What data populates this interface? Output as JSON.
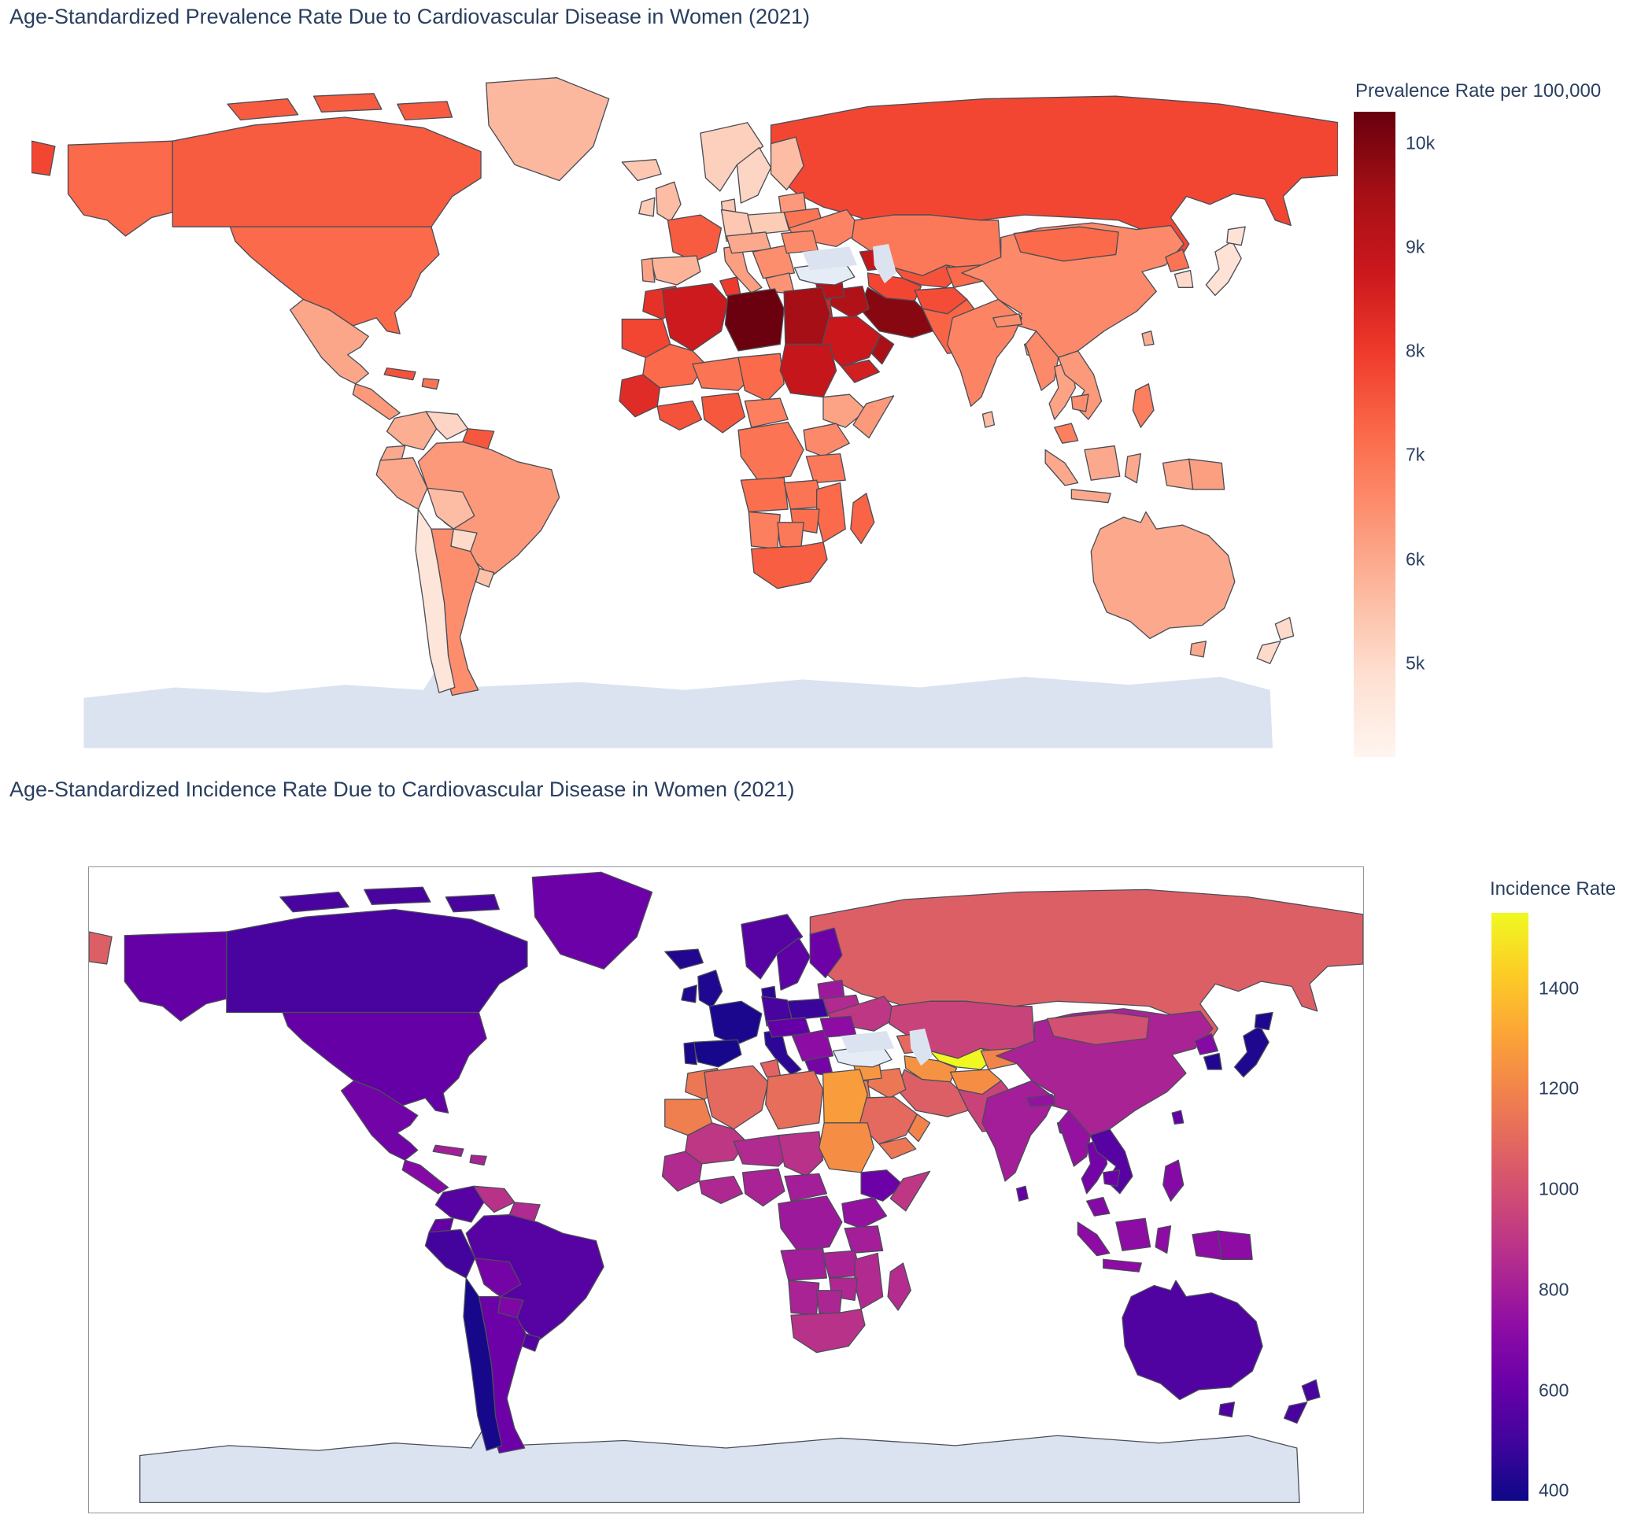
{
  "style": {
    "background": "#ffffff",
    "title_color": "#2a3f5f",
    "land_border_color": "#4a4e57",
    "frame_color": "#8f959c",
    "no_data_color": "#e6ecf5",
    "water_color": "#dbe3f1",
    "antarctica_color": "#dbe3f1"
  },
  "map1": {
    "title": "Age-Standardized Prevalence Rate Due to Cardiovascular Disease in Women (2021)",
    "colorbar": {
      "title": "Prevalence Rate per 100,000",
      "tick_labels": [
        "10k",
        "9k",
        "8k",
        "7k",
        "6k",
        "5k"
      ],
      "tick_values": [
        10000,
        9000,
        8000,
        7000,
        6000,
        5000
      ]
    }
  },
  "map2": {
    "title": "Age-Standardized Incidence Rate Due to Cardiovascular Disease in Women (2021)",
    "colorbar": {
      "title": "Incidence Rate",
      "tick_labels": [
        "1400",
        "1200",
        "1000",
        "800",
        "600",
        "400"
      ],
      "tick_values": [
        1400,
        1200,
        1000,
        800,
        600,
        400
      ]
    }
  },
  "chart_data": [
    {
      "type": "choropleth",
      "title": "Age-Standardized Prevalence Rate Due to Cardiovascular Disease in Women (2021)",
      "colorbar_title": "Prevalence Rate per 100,000",
      "zmin": 4100,
      "zmax": 10300,
      "colorscale_name": "Reds",
      "colorscale": [
        "#fff5f0",
        "#fee0d2",
        "#fcbba1",
        "#fc9272",
        "#fb6a4a",
        "#ef3b2c",
        "#cb181d",
        "#a50f15",
        "#67000d"
      ],
      "legend_position": "right",
      "values": {
        "united-states": 7200,
        "canada": 7450,
        "greenland": 5700,
        "mexico": 6050,
        "central-america": 6300,
        "cuba": 7600,
        "hispaniola": 7000,
        "colombia": 5900,
        "venezuela": 5100,
        "guyana-suriname": 7500,
        "ecuador": 6000,
        "peru": 6000,
        "brazil": 6300,
        "bolivia": 5600,
        "paraguay": 5000,
        "chile": 4700,
        "argentina": 6500,
        "uruguay": 5500,
        "iceland": 5400,
        "united-kingdom": 5600,
        "ireland": 5300,
        "norway": 5200,
        "sweden": 5100,
        "finland": 5600,
        "denmark": 5400,
        "baltics": 6300,
        "poland": 5300,
        "germany": 5400,
        "france": 7450,
        "spain": 5800,
        "portugal": 6100,
        "italy": 6200,
        "central-europe": 6000,
        "balkans": 6500,
        "greece": 6400,
        "romania": 6600,
        "ukraine": 6700,
        "belarus": 7000,
        "russia": 7800,
        "turkey": null,
        "caucasus": 8900,
        "kazakhstan": 6900,
        "uzbekistan": 7600,
        "turkmenistan": 7800,
        "kyrgyzstan-tajikistan": 7200,
        "afghanistan": 7700,
        "pakistan": 7300,
        "iran": 9900,
        "iraq": 9300,
        "syria": 9200,
        "jordan-israel": 8400,
        "saudi-arabia": 8800,
        "yemen": 8600,
        "oman": 9400,
        "morocco": 8200,
        "western-sahara-mauritania": 7800,
        "algeria": 8700,
        "tunisia": 8000,
        "libya": 10250,
        "egypt": 9500,
        "mali": 7200,
        "niger": 7000,
        "chad": 7200,
        "sudan": 8900,
        "ethiopia": 6100,
        "somalia": 6300,
        "senegal-guinea": 8300,
        "ivory-ghana": 7600,
        "nigeria": 7500,
        "cameroon-car": 6800,
        "dr-congo": 7000,
        "uganda-kenya": 6600,
        "tanzania": 6900,
        "angola": 7100,
        "zambia": 7000,
        "mozambique": 7200,
        "zimbabwe": 7100,
        "namibia": 6800,
        "botswana": 6900,
        "south-africa": 7400,
        "madagascar": 7300,
        "india": 6700,
        "nepal": 6500,
        "bangladesh": 6100,
        "sri-lanka": 5600,
        "china": 6600,
        "mongolia": 7200,
        "north-korea": 7000,
        "south-korea": 5000,
        "japan": 4800,
        "taiwan": 5900,
        "myanmar": 6600,
        "thailand": 6100,
        "laos-vietnam": 6300,
        "cambodia": 6500,
        "malaysia": 6800,
        "indonesia": 6000,
        "philippines": 6800,
        "papua-new-guinea": 6200,
        "australia": 6000,
        "new-zealand": 5000
      }
    },
    {
      "type": "choropleth",
      "title": "Age-Standardized Incidence Rate Due to Cardiovascular Disease in Women (2021)",
      "colorbar_title": "Incidence Rate",
      "zmin": 380,
      "zmax": 1550,
      "colorscale_name": "Plasma",
      "colorscale": [
        "#0d0887",
        "#41049d",
        "#6a00a8",
        "#8f0da4",
        "#b12a90",
        "#cc4778",
        "#e16462",
        "#f2844b",
        "#fca636",
        "#fcce25",
        "#f0f921"
      ],
      "legend_position": "right",
      "values": {
        "united-states": 600,
        "canada": 520,
        "greenland": 620,
        "mexico": 640,
        "central-america": 700,
        "cuba": 800,
        "hispaniola": 820,
        "colombia": 560,
        "venezuela": 880,
        "guyana-suriname": 850,
        "ecuador": 600,
        "peru": 500,
        "brazil": 560,
        "bolivia": 650,
        "paraguay": 680,
        "chile": 400,
        "argentina": 620,
        "uruguay": 550,
        "iceland": 430,
        "united-kingdom": 420,
        "ireland": 430,
        "norway": 560,
        "sweden": 580,
        "finland": 620,
        "denmark": 450,
        "baltics": 780,
        "poland": 480,
        "germany": 520,
        "france": 410,
        "spain": 400,
        "portugal": 410,
        "italy": 450,
        "central-europe": 600,
        "balkans": 720,
        "greece": 650,
        "romania": 720,
        "ukraine": 900,
        "belarus": 850,
        "russia": 1060,
        "turkey": null,
        "caucasus": 1100,
        "kazakhstan": 950,
        "uzbekistan": 1545,
        "turkmenistan": 1250,
        "kyrgyzstan-tajikistan": 1200,
        "afghanistan": 1230,
        "pakistan": 950,
        "iran": 1060,
        "iraq": 1150,
        "syria": 1260,
        "jordan-israel": 1150,
        "saudi-arabia": 1100,
        "yemen": 1150,
        "oman": 1200,
        "morocco": 1150,
        "western-sahara-mauritania": 1180,
        "algeria": 1100,
        "tunisia": 1080,
        "libya": 1120,
        "egypt": 1280,
        "mali": 900,
        "niger": 850,
        "chad": 880,
        "sudan": 1230,
        "ethiopia": 620,
        "somalia": 900,
        "senegal-guinea": 850,
        "ivory-ghana": 840,
        "nigeria": 820,
        "cameroon-car": 800,
        "dr-congo": 780,
        "uganda-kenya": 750,
        "tanzania": 800,
        "angola": 800,
        "zambia": 820,
        "mozambique": 850,
        "zimbabwe": 840,
        "namibia": 820,
        "botswana": 830,
        "south-africa": 880,
        "madagascar": 860,
        "india": 800,
        "nepal": 750,
        "bangladesh": 700,
        "sri-lanka": 600,
        "china": 820,
        "mongolia": 1000,
        "north-korea": 700,
        "south-korea": 430,
        "japan": 420,
        "taiwan": 600,
        "myanmar": 750,
        "thailand": 650,
        "laos-vietnam": 560,
        "cambodia": 620,
        "malaysia": 700,
        "indonesia": 720,
        "philippines": 700,
        "papua-new-guinea": 720,
        "australia": 540,
        "new-zealand": 520
      }
    }
  ]
}
